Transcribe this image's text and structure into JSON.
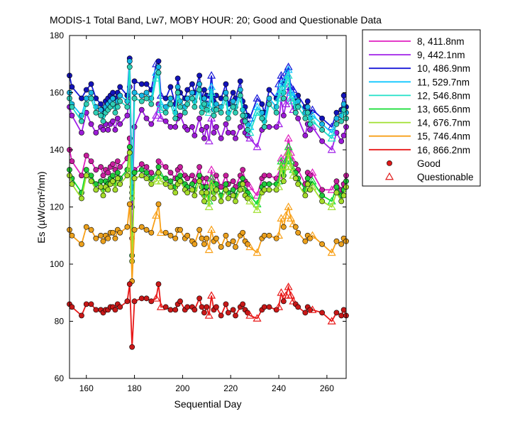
{
  "chart_data": {
    "type": "line",
    "title": "MODIS-1 Total Band,  Lw7, MOBY HOUR: 20;  Good and Questionable Data",
    "xlabel": "Sequential Day",
    "ylabel": "Es (µW/cm²/nm)",
    "xlim": [
      153,
      268
    ],
    "ylim": [
      60,
      180
    ],
    "xticks": [
      "160",
      "180",
      "200",
      "220",
      "240",
      "260"
    ],
    "yticks": [
      "60",
      "80",
      "100",
      "120",
      "140",
      "160",
      "180"
    ],
    "grid": false,
    "legend_position": "outside-right",
    "markers": {
      "good": "Good",
      "questionable": "Questionable"
    },
    "x": [
      153,
      154,
      158,
      160,
      162,
      164,
      166,
      167,
      168,
      169,
      170,
      171,
      172,
      173,
      174,
      177,
      178,
      179,
      180,
      183,
      185,
      187,
      189,
      190,
      191,
      193,
      195,
      197,
      198,
      199,
      201,
      202,
      204,
      205,
      207,
      208,
      209,
      210,
      211,
      212,
      213,
      214,
      216,
      218,
      219,
      221,
      222,
      224,
      225,
      226,
      227,
      228,
      231,
      233,
      234,
      236,
      239,
      240,
      241,
      242,
      243,
      244,
      245,
      246,
      247,
      248,
      251,
      252,
      253,
      254,
      258,
      262,
      264,
      266,
      267,
      268
    ],
    "questionable_x": [
      186,
      189,
      191,
      211,
      212,
      228,
      231,
      240,
      241,
      243,
      244,
      245,
      246,
      254,
      262
    ],
    "series": [
      {
        "name": "8, 411.8nm",
        "color": "#e020c0",
        "fill": "#c81e9e",
        "values": [
          140,
          136,
          131,
          138,
          136,
          133,
          134,
          131,
          133,
          132,
          134,
          135,
          133,
          136,
          134,
          137,
          144,
          109,
          133,
          135,
          134,
          132,
          131,
          136,
          135,
          134,
          132,
          130,
          133,
          134,
          131,
          130,
          131,
          129,
          134,
          130,
          127,
          130,
          126,
          133,
          128,
          131,
          127,
          131,
          128,
          129,
          127,
          131,
          133,
          129,
          128,
          127,
          124,
          130,
          131,
          131,
          130,
          131,
          137,
          133,
          138,
          144,
          139,
          136,
          135,
          133,
          128,
          132,
          131,
          132,
          126,
          126,
          129,
          126,
          128,
          131
        ]
      },
      {
        "name": "9, 442.1nm",
        "color": "#a020e8",
        "fill": "#9b1bd6",
        "values": [
          155,
          152,
          146,
          153,
          149,
          146,
          148,
          147,
          149,
          147,
          149,
          150,
          147,
          151,
          149,
          152,
          162,
          120,
          148,
          154,
          151,
          149,
          152,
          156,
          151,
          150,
          148,
          148,
          151,
          152,
          148,
          147,
          148,
          145,
          151,
          147,
          144,
          148,
          143,
          151,
          146,
          148,
          144,
          149,
          146,
          146,
          144,
          148,
          150,
          146,
          145,
          144,
          141,
          147,
          148,
          148,
          148,
          149,
          158,
          152,
          156,
          162,
          157,
          154,
          153,
          151,
          145,
          149,
          147,
          148,
          143,
          140,
          146,
          143,
          145,
          148
        ]
      },
      {
        "name": "10, 486.9nm",
        "color": "#1818d8",
        "fill": "#1313b9",
        "values": [
          166,
          162,
          158,
          161,
          163,
          158,
          156,
          154,
          157,
          158,
          159,
          160,
          158,
          160,
          162,
          159,
          172,
          127,
          164,
          163,
          163,
          161,
          170,
          171,
          159,
          158,
          162,
          156,
          165,
          160,
          158,
          161,
          163,
          160,
          166,
          158,
          161,
          159,
          158,
          166,
          157,
          159,
          158,
          163,
          156,
          160,
          158,
          164,
          157,
          155,
          152,
          151,
          158,
          156,
          153,
          161,
          158,
          163,
          166,
          163,
          167,
          169,
          162,
          161,
          157,
          159,
          155,
          157,
          153,
          154,
          151,
          148,
          153,
          154,
          159,
          155
        ]
      },
      {
        "name": "11, 529.7nm",
        "color": "#10c8ff",
        "fill": "#18b8e6",
        "values": [
          160,
          156,
          152,
          158,
          160,
          155,
          154,
          152,
          155,
          156,
          157,
          158,
          155,
          157,
          159,
          157,
          171,
          125,
          160,
          159,
          160,
          158,
          167,
          169,
          156,
          155,
          158,
          153,
          162,
          157,
          155,
          158,
          160,
          157,
          163,
          155,
          158,
          156,
          155,
          162,
          154,
          156,
          155,
          160,
          153,
          157,
          155,
          161,
          154,
          152,
          149,
          148,
          155,
          153,
          150,
          158,
          155,
          160,
          163,
          160,
          165,
          168,
          160,
          159,
          155,
          157,
          153,
          155,
          151,
          152,
          149,
          146,
          151,
          152,
          156,
          153
        ]
      },
      {
        "name": "12, 546.8nm",
        "color": "#20e0c8",
        "fill": "#2fcfb5",
        "values": [
          158,
          155,
          150,
          156,
          158,
          153,
          152,
          150,
          153,
          154,
          155,
          156,
          153,
          155,
          157,
          155,
          169,
          123,
          158,
          157,
          158,
          156,
          165,
          167,
          154,
          153,
          156,
          151,
          160,
          155,
          153,
          156,
          158,
          155,
          161,
          153,
          156,
          154,
          153,
          160,
          152,
          154,
          153,
          158,
          151,
          155,
          153,
          159,
          152,
          150,
          147,
          146,
          153,
          151,
          148,
          156,
          153,
          158,
          161,
          158,
          163,
          166,
          158,
          157,
          153,
          155,
          151,
          153,
          149,
          150,
          147,
          144,
          149,
          150,
          154,
          151
        ]
      },
      {
        "name": "13, 665.6nm",
        "color": "#10dc30",
        "fill": "#1fcb3a",
        "values": [
          133,
          130,
          125,
          133,
          131,
          128,
          129,
          126,
          129,
          128,
          130,
          131,
          128,
          132,
          130,
          133,
          141,
          103,
          132,
          133,
          132,
          130,
          131,
          134,
          131,
          130,
          129,
          127,
          130,
          131,
          128,
          127,
          128,
          126,
          131,
          127,
          124,
          127,
          122,
          130,
          125,
          128,
          124,
          128,
          125,
          126,
          124,
          128,
          130,
          126,
          125,
          124,
          121,
          127,
          128,
          128,
          128,
          129,
          136,
          131,
          136,
          141,
          136,
          133,
          132,
          130,
          126,
          130,
          128,
          129,
          124,
          122,
          127,
          124,
          126,
          129
        ]
      },
      {
        "name": "14, 676.7nm",
        "color": "#a0e030",
        "fill": "#a6dd2a",
        "values": [
          131,
          128,
          123,
          131,
          129,
          126,
          127,
          124,
          127,
          126,
          128,
          129,
          126,
          130,
          128,
          131,
          139,
          101,
          130,
          131,
          130,
          128,
          129,
          132,
          129,
          128,
          127,
          125,
          128,
          129,
          126,
          125,
          126,
          124,
          129,
          125,
          122,
          125,
          120,
          128,
          123,
          126,
          122,
          126,
          123,
          124,
          122,
          126,
          128,
          124,
          123,
          122,
          119,
          125,
          126,
          126,
          126,
          127,
          134,
          129,
          134,
          139,
          134,
          131,
          130,
          128,
          124,
          128,
          126,
          127,
          122,
          120,
          125,
          122,
          124,
          127
        ]
      },
      {
        "name": "15, 746.4nm",
        "color": "#f8a018",
        "fill": "#eba01c",
        "values": [
          112,
          110,
          107,
          113,
          112,
          109,
          110,
          108,
          110,
          109,
          111,
          111,
          109,
          112,
          111,
          113,
          121,
          94,
          112,
          113,
          112,
          111,
          117,
          121,
          111,
          111,
          110,
          109,
          112,
          112,
          109,
          110,
          108,
          107,
          112,
          109,
          107,
          109,
          105,
          112,
          108,
          109,
          106,
          110,
          107,
          108,
          106,
          110,
          111,
          108,
          107,
          106,
          104,
          109,
          110,
          110,
          109,
          110,
          116,
          113,
          117,
          120,
          116,
          114,
          113,
          111,
          108,
          110,
          109,
          110,
          107,
          104,
          108,
          107,
          109,
          108
        ]
      },
      {
        "name": "16, 866.2nm",
        "color": "#e81818",
        "fill": "#c81818",
        "values": [
          86,
          85,
          82,
          86,
          86,
          84,
          84,
          83,
          84,
          84,
          85,
          85,
          84,
          86,
          85,
          87,
          93,
          71,
          87,
          88,
          88,
          87,
          88,
          93,
          85,
          85,
          84,
          84,
          86,
          87,
          84,
          85,
          85,
          84,
          88,
          85,
          83,
          85,
          82,
          89,
          84,
          85,
          82,
          86,
          83,
          84,
          82,
          85,
          86,
          84,
          83,
          82,
          81,
          84,
          85,
          85,
          84,
          85,
          90,
          87,
          89,
          92,
          89,
          87,
          86,
          85,
          83,
          85,
          84,
          84,
          83,
          80,
          83,
          82,
          84,
          82
        ]
      }
    ]
  }
}
